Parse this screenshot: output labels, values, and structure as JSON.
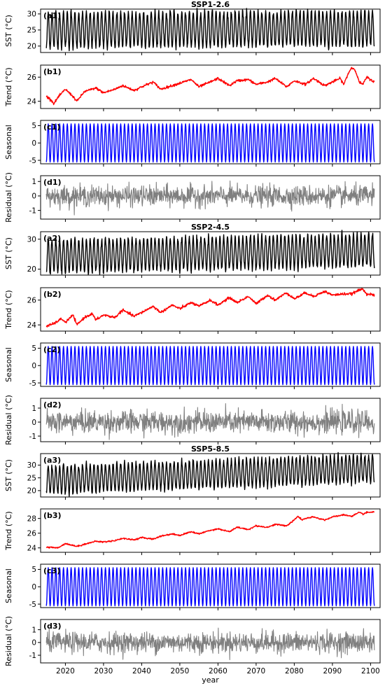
{
  "chart_data": {
    "type": "line",
    "xlabel": "year",
    "xlim": [
      2013.5,
      2102.5
    ],
    "xticks": [
      2020,
      2030,
      2040,
      2050,
      2060,
      2070,
      2080,
      2090,
      2100
    ],
    "scenarios": [
      {
        "title": "SSP1-2.6",
        "panels": [
          {
            "label": "(a1)",
            "ylabel": "SST (°C)",
            "kind": "sst",
            "color": "#000000",
            "ylim": [
              18,
              31.5
            ],
            "yticks": [
              20,
              25,
              30
            ],
            "mean": [
              25.0,
              25.5
            ],
            "amp": 5.5
          },
          {
            "label": "(b1)",
            "ylabel": "Trend (°C)",
            "kind": "trend",
            "color": "#ff0000",
            "ylim": [
              23.4,
              27.0
            ],
            "yticks": [
              24,
              26
            ],
            "x": [
              2015,
              2016,
              2017,
              2018,
              2020,
              2022,
              2023,
              2025,
              2028,
              2030,
              2033,
              2035,
              2038,
              2040,
              2043,
              2045,
              2048,
              2050,
              2053,
              2055,
              2058,
              2060,
              2063,
              2065,
              2068,
              2070,
              2073,
              2075,
              2078,
              2080,
              2083,
              2085,
              2088,
              2090,
              2092,
              2093,
              2094,
              2095,
              2096,
              2097,
              2098,
              2099,
              2101
            ],
            "y": [
              24.4,
              24.2,
              23.8,
              24.3,
              25.0,
              24.4,
              24.0,
              24.8,
              25.1,
              24.7,
              25.0,
              25.3,
              24.9,
              25.2,
              25.6,
              25.0,
              25.3,
              25.5,
              25.8,
              25.2,
              25.6,
              25.9,
              25.3,
              25.7,
              25.8,
              25.4,
              25.6,
              25.9,
              25.2,
              25.7,
              25.4,
              25.9,
              25.3,
              25.6,
              25.9,
              25.4,
              26.2,
              26.8,
              26.6,
              25.6,
              25.4,
              26.0,
              25.6
            ]
          },
          {
            "label": "(c1)",
            "ylabel": "Seasonal",
            "kind": "seasonal",
            "color": "#0000ff",
            "ylim": [
              -6,
              6.5
            ],
            "yticks": [
              -5,
              0,
              5
            ],
            "amp": 5.5
          },
          {
            "label": "(d1)",
            "ylabel": "Residual (°C)",
            "kind": "residual",
            "color": "#808080",
            "ylim": [
              -1.6,
              1.4
            ],
            "yticks": [
              -1,
              0,
              1
            ],
            "std": 0.35
          }
        ]
      },
      {
        "title": "SSP2-4.5",
        "panels": [
          {
            "label": "(a2)",
            "ylabel": "SST (°C)",
            "kind": "sst",
            "color": "#000000",
            "ylim": [
              18,
              32.5
            ],
            "yticks": [
              20,
              30
            ],
            "mean": [
              24.3,
              26.3
            ],
            "amp": 5.5
          },
          {
            "label": "(b2)",
            "ylabel": "Trend (°C)",
            "kind": "trend",
            "color": "#ff0000",
            "ylim": [
              23.5,
              27.0
            ],
            "yticks": [
              24,
              26
            ],
            "x": [
              2015,
              2017,
              2019,
              2020,
              2022,
              2023,
              2025,
              2027,
              2028,
              2030,
              2033,
              2035,
              2038,
              2040,
              2043,
              2045,
              2048,
              2050,
              2053,
              2055,
              2058,
              2060,
              2063,
              2065,
              2068,
              2070,
              2073,
              2075,
              2078,
              2080,
              2083,
              2085,
              2088,
              2090,
              2093,
              2095,
              2097,
              2098,
              2099,
              2101
            ],
            "y": [
              23.9,
              24.1,
              24.5,
              24.2,
              24.8,
              24.0,
              24.6,
              24.9,
              24.4,
              24.8,
              24.6,
              25.2,
              24.7,
              25.0,
              25.5,
              25.0,
              25.6,
              25.3,
              25.8,
              25.5,
              26.0,
              25.6,
              26.2,
              25.8,
              26.3,
              25.7,
              26.4,
              26.0,
              26.6,
              26.1,
              26.6,
              26.3,
              26.7,
              26.4,
              26.5,
              26.5,
              26.8,
              26.9,
              26.5,
              26.4
            ]
          },
          {
            "label": "(c2)",
            "ylabel": "Seasonal",
            "kind": "seasonal",
            "color": "#0000ff",
            "ylim": [
              -6,
              6.5
            ],
            "yticks": [
              -5,
              0,
              5
            ],
            "amp": 5.5
          },
          {
            "label": "(d2)",
            "ylabel": "Residual (°C)",
            "kind": "residual",
            "color": "#808080",
            "ylim": [
              -1.4,
              1.7
            ],
            "yticks": [
              -1,
              0,
              1
            ],
            "std": 0.4
          }
        ]
      },
      {
        "title": "SSP5-8.5",
        "panels": [
          {
            "label": "(a3)",
            "ylabel": "SST (°C)",
            "kind": "sst",
            "color": "#000000",
            "ylim": [
              17.5,
              34.5
            ],
            "yticks": [
              20,
              25,
              30
            ],
            "mean": [
              24.2,
              28.7
            ],
            "amp": 5.5
          },
          {
            "label": "(b3)",
            "ylabel": "Trend (°C)",
            "kind": "trend",
            "color": "#ff0000",
            "ylim": [
              23.4,
              29.3
            ],
            "yticks": [
              24,
              26,
              28
            ],
            "x": [
              2015,
              2018,
              2020,
              2023,
              2025,
              2028,
              2030,
              2033,
              2035,
              2038,
              2040,
              2043,
              2045,
              2048,
              2050,
              2053,
              2055,
              2058,
              2060,
              2063,
              2065,
              2068,
              2070,
              2073,
              2075,
              2078,
              2080,
              2081,
              2082,
              2083,
              2085,
              2088,
              2090,
              2093,
              2095,
              2097,
              2098,
              2099,
              2101
            ],
            "y": [
              24.1,
              24.0,
              24.6,
              24.2,
              24.5,
              24.9,
              24.8,
              25.0,
              25.3,
              25.1,
              25.4,
              25.2,
              25.6,
              25.9,
              25.7,
              26.2,
              25.9,
              26.4,
              26.6,
              26.2,
              26.8,
              26.5,
              27.0,
              26.8,
              27.2,
              27.0,
              27.8,
              28.3,
              27.8,
              28.0,
              28.2,
              27.8,
              28.2,
              28.5,
              28.3,
              28.8,
              28.6,
              28.8,
              28.9
            ]
          },
          {
            "label": "(c3)",
            "ylabel": "Seasonal",
            "kind": "seasonal",
            "color": "#0000ff",
            "ylim": [
              -6,
              6.5
            ],
            "yticks": [
              -5,
              0,
              5
            ],
            "amp": 5.5
          },
          {
            "label": "(d3)",
            "ylabel": "Residual (°C)",
            "kind": "residual",
            "color": "#808080",
            "ylim": [
              -1.6,
              1.8
            ],
            "yticks": [
              -1,
              0,
              1
            ],
            "std": 0.4
          }
        ]
      }
    ]
  }
}
